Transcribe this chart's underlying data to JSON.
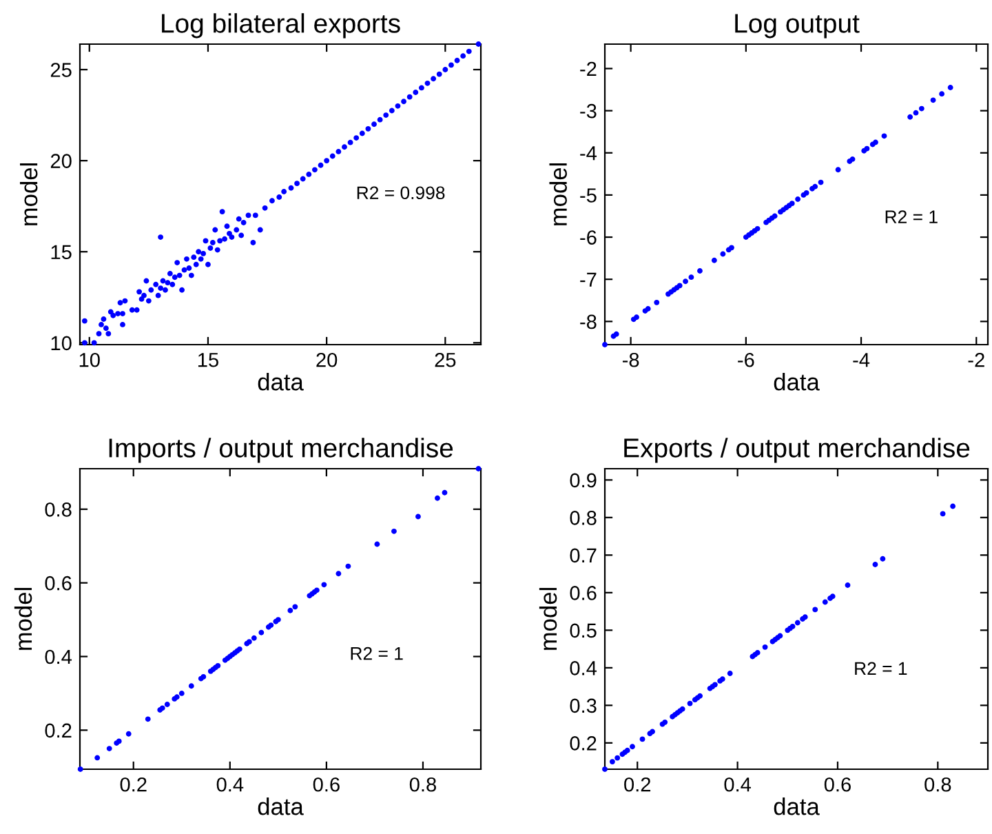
{
  "chart_data": [
    {
      "type": "scatter",
      "title": "Log bilateral exports",
      "xlabel": "data",
      "ylabel": "model",
      "annotations": [
        "R2 = 0.998"
      ],
      "marker": "circle",
      "grid": false,
      "xlim": [
        9.6,
        26.5
      ],
      "ylim": [
        9.9,
        26.4
      ],
      "xticks": [
        10,
        15,
        20,
        25
      ],
      "yticks": [
        10,
        15,
        20,
        25
      ],
      "series": [
        {
          "color": "#0000ff",
          "x": [
            9.8,
            9.8,
            10.2,
            10.4,
            10.5,
            10.6,
            10.7,
            10.8,
            10.9,
            11.0,
            11.2,
            11.3,
            11.4,
            11.4,
            11.5,
            11.8,
            12.0,
            12.1,
            12.2,
            12.3,
            12.4,
            12.5,
            12.6,
            12.8,
            12.9,
            13.0,
            13.0,
            13.1,
            13.2,
            13.3,
            13.4,
            13.5,
            13.6,
            13.7,
            13.8,
            13.9,
            14.0,
            14.1,
            14.2,
            14.3,
            14.4,
            14.5,
            14.6,
            14.7,
            14.8,
            14.9,
            15.0,
            15.1,
            15.2,
            15.3,
            15.4,
            15.5,
            15.6,
            15.7,
            15.8,
            15.9,
            16.0,
            16.2,
            16.3,
            16.4,
            16.5,
            16.7,
            16.9,
            17.0,
            17.2,
            17.4,
            17.7,
            18.0,
            18.2,
            18.5,
            18.75,
            19.0,
            19.25,
            19.5,
            19.75,
            20.0,
            20.25,
            20.5,
            20.75,
            21.0,
            21.25,
            21.5,
            21.75,
            22.0,
            22.25,
            22.5,
            22.75,
            23.0,
            23.25,
            23.5,
            23.75,
            24.0,
            24.25,
            24.5,
            24.75,
            25.0,
            25.25,
            25.5,
            25.75,
            26.0,
            26.4
          ],
          "values": [
            10.0,
            11.2,
            10.0,
            10.5,
            11.0,
            11.3,
            10.8,
            10.5,
            11.7,
            11.5,
            11.6,
            12.2,
            11.0,
            11.6,
            12.3,
            11.8,
            11.8,
            12.8,
            12.4,
            12.6,
            13.4,
            12.3,
            12.9,
            13.2,
            12.6,
            13.0,
            15.8,
            13.4,
            12.9,
            13.3,
            13.8,
            13.2,
            13.6,
            14.4,
            13.7,
            12.9,
            14.0,
            14.6,
            14.1,
            13.7,
            14.7,
            14.3,
            15.0,
            14.6,
            14.9,
            15.6,
            14.3,
            15.2,
            15.5,
            16.2,
            15.1,
            15.6,
            17.2,
            15.7,
            16.4,
            16.0,
            15.8,
            16.2,
            16.8,
            15.9,
            16.6,
            17.0,
            15.5,
            17.0,
            16.2,
            17.4,
            17.8,
            18.0,
            18.3,
            18.5,
            18.75,
            19.0,
            19.25,
            19.5,
            19.75,
            20.0,
            20.25,
            20.5,
            20.75,
            21.0,
            21.25,
            21.5,
            21.75,
            22.0,
            22.25,
            22.5,
            22.75,
            23.0,
            23.25,
            23.5,
            23.75,
            24.0,
            24.25,
            24.5,
            24.75,
            25.0,
            25.25,
            25.5,
            25.75,
            26.0,
            26.4
          ]
        }
      ]
    },
    {
      "type": "scatter",
      "title": "Log output",
      "xlabel": "data",
      "ylabel": "model",
      "annotations": [
        "R2 = 1"
      ],
      "marker": "circle",
      "grid": false,
      "xlim": [
        -8.45,
        -1.8
      ],
      "ylim": [
        -8.55,
        -1.42
      ],
      "xticks": [
        -8,
        -6,
        -4,
        -2
      ],
      "yticks": [
        -8,
        -7,
        -6,
        -5,
        -4,
        -3,
        -2
      ],
      "series": [
        {
          "color": "#0000ff",
          "x": [
            -8.45,
            -8.3,
            -8.25,
            -7.95,
            -7.9,
            -7.75,
            -7.7,
            -7.55,
            -7.35,
            -7.3,
            -7.25,
            -7.2,
            -7.15,
            -7.05,
            -6.95,
            -6.8,
            -6.55,
            -6.4,
            -6.3,
            -6.25,
            -6.0,
            -5.95,
            -5.9,
            -5.85,
            -5.8,
            -5.65,
            -5.6,
            -5.55,
            -5.5,
            -5.4,
            -5.35,
            -5.3,
            -5.25,
            -5.2,
            -5.1,
            -5.0,
            -4.95,
            -4.85,
            -4.8,
            -4.7,
            -4.4,
            -4.2,
            -4.15,
            -3.95,
            -3.9,
            -3.8,
            -3.75,
            -3.6,
            -3.15,
            -3.05,
            -2.95,
            -2.75,
            -2.6,
            -2.45
          ],
          "values": [
            -8.55,
            -8.35,
            -8.3,
            -7.95,
            -7.9,
            -7.75,
            -7.7,
            -7.55,
            -7.35,
            -7.3,
            -7.25,
            -7.2,
            -7.15,
            -7.05,
            -6.95,
            -6.8,
            -6.55,
            -6.4,
            -6.3,
            -6.25,
            -6.0,
            -5.95,
            -5.9,
            -5.85,
            -5.8,
            -5.65,
            -5.6,
            -5.55,
            -5.5,
            -5.4,
            -5.35,
            -5.3,
            -5.25,
            -5.2,
            -5.1,
            -5.0,
            -4.95,
            -4.85,
            -4.8,
            -4.7,
            -4.4,
            -4.2,
            -4.15,
            -3.95,
            -3.9,
            -3.8,
            -3.75,
            -3.6,
            -3.15,
            -3.05,
            -2.95,
            -2.75,
            -2.6,
            -2.45
          ]
        }
      ]
    },
    {
      "type": "scatter",
      "title": "Imports / output merchandise",
      "xlabel": "data",
      "ylabel": "model",
      "annotations": [
        "R2 = 1"
      ],
      "marker": "circle",
      "grid": false,
      "xlim": [
        0.089,
        0.92
      ],
      "ylim": [
        0.094,
        0.91
      ],
      "xticks": [
        0.2,
        0.4,
        0.6,
        0.8
      ],
      "yticks": [
        0.2,
        0.4,
        0.6,
        0.8
      ],
      "series": [
        {
          "color": "#0000ff",
          "x": [
            0.09,
            0.125,
            0.15,
            0.165,
            0.17,
            0.19,
            0.23,
            0.255,
            0.26,
            0.27,
            0.285,
            0.29,
            0.3,
            0.32,
            0.34,
            0.345,
            0.36,
            0.365,
            0.37,
            0.375,
            0.39,
            0.395,
            0.4,
            0.405,
            0.41,
            0.415,
            0.42,
            0.435,
            0.44,
            0.45,
            0.465,
            0.48,
            0.485,
            0.495,
            0.5,
            0.525,
            0.535,
            0.565,
            0.57,
            0.575,
            0.58,
            0.595,
            0.625,
            0.645,
            0.705,
            0.74,
            0.79,
            0.83,
            0.845,
            0.915
          ],
          "values": [
            0.094,
            0.125,
            0.15,
            0.165,
            0.17,
            0.19,
            0.23,
            0.255,
            0.26,
            0.27,
            0.285,
            0.29,
            0.3,
            0.32,
            0.34,
            0.345,
            0.36,
            0.365,
            0.37,
            0.375,
            0.39,
            0.395,
            0.4,
            0.405,
            0.41,
            0.415,
            0.42,
            0.435,
            0.44,
            0.45,
            0.465,
            0.48,
            0.485,
            0.495,
            0.5,
            0.525,
            0.535,
            0.565,
            0.57,
            0.575,
            0.58,
            0.595,
            0.625,
            0.645,
            0.705,
            0.74,
            0.78,
            0.83,
            0.845,
            0.91
          ]
        }
      ]
    },
    {
      "type": "scatter",
      "title": "Exports / output merchandise",
      "xlabel": "data",
      "ylabel": "model",
      "annotations": [
        "R2 = 1"
      ],
      "marker": "circle",
      "grid": false,
      "xlim": [
        0.135,
        0.9
      ],
      "ylim": [
        0.13,
        0.93
      ],
      "xticks": [
        0.2,
        0.4,
        0.6,
        0.8
      ],
      "yticks": [
        0.2,
        0.3,
        0.4,
        0.5,
        0.6,
        0.7,
        0.8,
        0.9
      ],
      "series": [
        {
          "color": "#0000ff",
          "x": [
            0.135,
            0.15,
            0.16,
            0.17,
            0.175,
            0.18,
            0.19,
            0.21,
            0.225,
            0.23,
            0.25,
            0.255,
            0.27,
            0.275,
            0.28,
            0.285,
            0.29,
            0.305,
            0.315,
            0.32,
            0.325,
            0.345,
            0.35,
            0.355,
            0.365,
            0.37,
            0.385,
            0.43,
            0.435,
            0.44,
            0.455,
            0.47,
            0.475,
            0.48,
            0.485,
            0.5,
            0.505,
            0.51,
            0.52,
            0.53,
            0.535,
            0.555,
            0.575,
            0.585,
            0.59,
            0.62,
            0.675,
            0.69,
            0.81,
            0.83
          ],
          "values": [
            0.13,
            0.15,
            0.16,
            0.17,
            0.175,
            0.18,
            0.19,
            0.21,
            0.225,
            0.23,
            0.25,
            0.255,
            0.27,
            0.275,
            0.28,
            0.285,
            0.29,
            0.305,
            0.315,
            0.32,
            0.325,
            0.345,
            0.35,
            0.355,
            0.365,
            0.37,
            0.385,
            0.43,
            0.435,
            0.44,
            0.455,
            0.47,
            0.475,
            0.48,
            0.485,
            0.5,
            0.505,
            0.51,
            0.52,
            0.53,
            0.535,
            0.555,
            0.575,
            0.585,
            0.59,
            0.62,
            0.675,
            0.69,
            0.81,
            0.83
          ]
        }
      ]
    }
  ]
}
